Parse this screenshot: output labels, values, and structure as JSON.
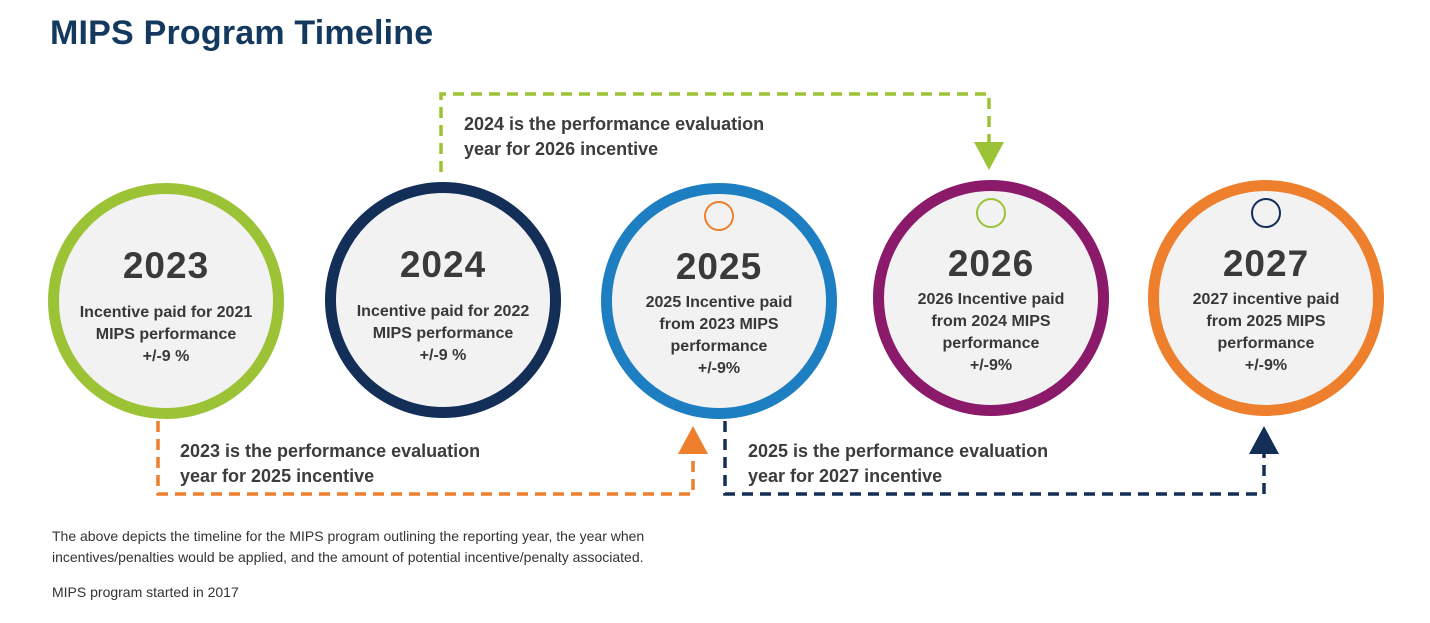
{
  "title": "MIPS Program Timeline",
  "colors": {
    "green": "#9cc336",
    "navy": "#132e57",
    "blue": "#1d7fc1",
    "purple": "#8c1a6b",
    "orange": "#ee7f2d",
    "title": "#13395f"
  },
  "circles": [
    {
      "year": "2023",
      "lines": [
        "Incentive paid for 2021",
        "MIPS performance",
        "+/-9 %"
      ],
      "ring_color": "green"
    },
    {
      "year": "2024",
      "lines": [
        "Incentive paid for 2022",
        "MIPS performance",
        "+/-9 %"
      ],
      "ring_color": "navy"
    },
    {
      "year": "2025",
      "lines": [
        "2025 Incentive paid",
        "from 2023 MIPS",
        "performance",
        "+/-9%"
      ],
      "ring_color": "blue",
      "marker_color": "orange"
    },
    {
      "year": "2026",
      "lines": [
        "2026 Incentive paid",
        "from 2024 MIPS",
        "performance",
        "+/-9%"
      ],
      "ring_color": "purple",
      "marker_color": "green"
    },
    {
      "year": "2027",
      "lines": [
        "2027 incentive paid",
        "from 2025 MIPS",
        "performance",
        "+/-9%"
      ],
      "ring_color": "orange",
      "marker_color": "navy"
    }
  ],
  "connectors": [
    {
      "text": [
        "2024 is the performance evaluation",
        "year for 2026 incentive"
      ],
      "from": "2024",
      "to": "2026",
      "color": "green"
    },
    {
      "text": [
        "2023 is the performance evaluation",
        "year for 2025 incentive"
      ],
      "from": "2023",
      "to": "2025",
      "color": "orange"
    },
    {
      "text": [
        "2025 is the performance evaluation",
        "year for 2027 incentive"
      ],
      "from": "2025",
      "to": "2027",
      "color": "navy"
    }
  ],
  "footer": {
    "description": [
      "The above depicts the timeline for the MIPS program outlining the reporting year, the year when",
      "incentives/penalties would be applied, and the amount of potential incentive/penalty associated."
    ],
    "started": "MIPS program started in 2017"
  }
}
